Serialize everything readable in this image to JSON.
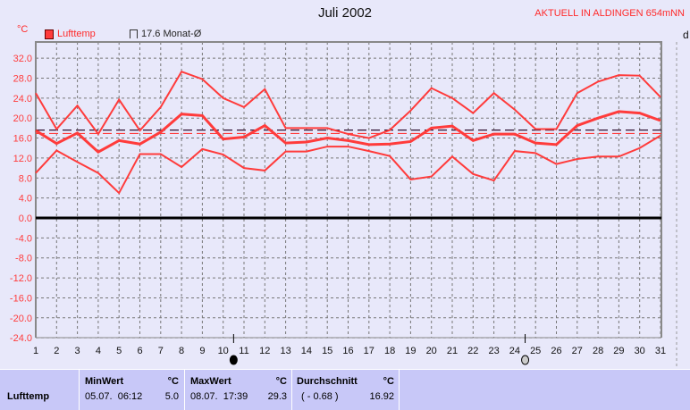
{
  "header": {
    "title": "Juli 2002",
    "station": "AKTUELL IN ALDINGEN 654mNN",
    "unit": "°C",
    "right_axis_label": "d"
  },
  "legend": {
    "series": "Lufttemp",
    "mean_label": "17.6 Monat-Ø"
  },
  "colors": {
    "series": "#ff3b3b",
    "mean_line": "#301030",
    "avg_line": "#ff3b3b",
    "background": "#e8e8fa",
    "table": "#c8c8f8"
  },
  "chart_data": {
    "type": "line",
    "title": "Juli 2002",
    "ylabel": "°C",
    "ylim": [
      -24,
      32
    ],
    "yticks": [
      "32.0",
      "28.0",
      "24.0",
      "20.0",
      "16.0",
      "12.0",
      "8.0",
      "4.0",
      "0.0",
      "-4.0",
      "-8.0",
      "-12.0",
      "-16.0",
      "-20.0",
      "-24.0"
    ],
    "x": [
      1,
      2,
      3,
      4,
      5,
      6,
      7,
      8,
      9,
      10,
      11,
      12,
      13,
      14,
      15,
      16,
      17,
      18,
      19,
      20,
      21,
      22,
      23,
      24,
      25,
      26,
      27,
      28,
      29,
      30,
      31
    ],
    "grid": true,
    "legend_position": "top-left",
    "series": [
      {
        "values": [
          25,
          17.8,
          22.5,
          16.8,
          23.7,
          17.5,
          22.2,
          29.3,
          27.8,
          24,
          22.2,
          25.8,
          18,
          18,
          18,
          16.8,
          16,
          17.6,
          21.5,
          26,
          24,
          21,
          25,
          21.7,
          17.8,
          17.8,
          25,
          27.3,
          28.6,
          28.5,
          24.2
        ]
      },
      {
        "values": [
          17.5,
          14.9,
          17,
          13.2,
          15.5,
          14.8,
          17.2,
          20.8,
          20.5,
          15.8,
          16.2,
          18.5,
          15,
          15.2,
          16,
          15.5,
          14.7,
          14.8,
          15.3,
          18,
          18.4,
          15.5,
          16.8,
          16.8,
          15,
          14.7,
          18.5,
          20,
          21.3,
          21,
          19.5
        ]
      },
      {
        "values": [
          9,
          13.5,
          11.2,
          9,
          5,
          12.8,
          12.8,
          10.2,
          13.8,
          12.7,
          10,
          9.5,
          13.3,
          13.3,
          14.3,
          14.3,
          13.4,
          12.4,
          7.7,
          8.3,
          12.3,
          8.8,
          7.5,
          13.4,
          13,
          10.8,
          11.8,
          12.3,
          12.3,
          14,
          16.5
        ]
      }
    ],
    "reference_lines": [
      {
        "value": 17.6,
        "label": "17.6 Monat-Ø"
      },
      {
        "value": 16.92
      }
    ],
    "moon_markers": [
      {
        "day": 10.5,
        "phase": "new-moon"
      },
      {
        "day": 24.5,
        "phase": "full-moon"
      }
    ]
  },
  "table": {
    "row_label": "Lufttemp",
    "min": {
      "header": "MinWert",
      "unit": "°C",
      "time": "05.07.  06:12",
      "value": "5.0"
    },
    "max": {
      "header": "MaxWert",
      "unit": "°C",
      "time": "08.07.  17:39",
      "value": "29.3"
    },
    "avg": {
      "header": "Durchschnitt",
      "unit": "°C",
      "diff": "( - 0.68 )",
      "value": "16.92"
    }
  }
}
